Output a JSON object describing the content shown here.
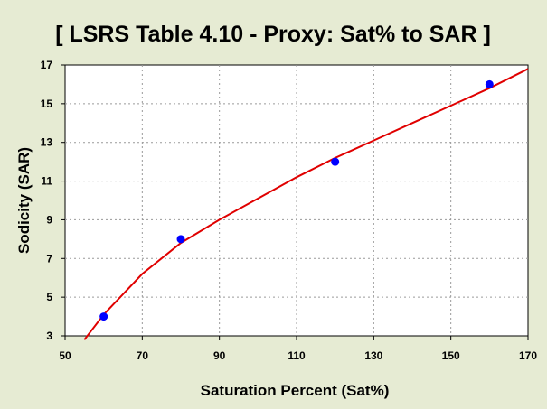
{
  "chart_data": {
    "type": "scatter",
    "title": "[ LSRS Table 4.10 - Proxy: Sat% to SAR ]",
    "xlabel": "Saturation Percent (Sat%)",
    "ylabel": "Sodicity (SAR)",
    "xlim": [
      50,
      170
    ],
    "ylim": [
      3,
      17
    ],
    "xticks": [
      50,
      70,
      90,
      110,
      130,
      150,
      170
    ],
    "yticks": [
      3,
      5,
      7,
      9,
      11,
      13,
      15,
      17
    ],
    "grid": true,
    "legend": "none",
    "series": [
      {
        "kind": "points",
        "color": "#0000ff",
        "x": [
          60,
          80,
          120,
          160
        ],
        "y": [
          4,
          8,
          12,
          16
        ]
      },
      {
        "kind": "fitted-curve",
        "color": "#e00000",
        "x": [
          55,
          60,
          70,
          80,
          90,
          100,
          110,
          120,
          130,
          140,
          150,
          160,
          170
        ],
        "y": [
          2.8,
          4.1,
          6.2,
          7.8,
          9.0,
          10.1,
          11.2,
          12.2,
          13.1,
          14.0,
          14.9,
          15.8,
          16.8
        ]
      }
    ]
  }
}
